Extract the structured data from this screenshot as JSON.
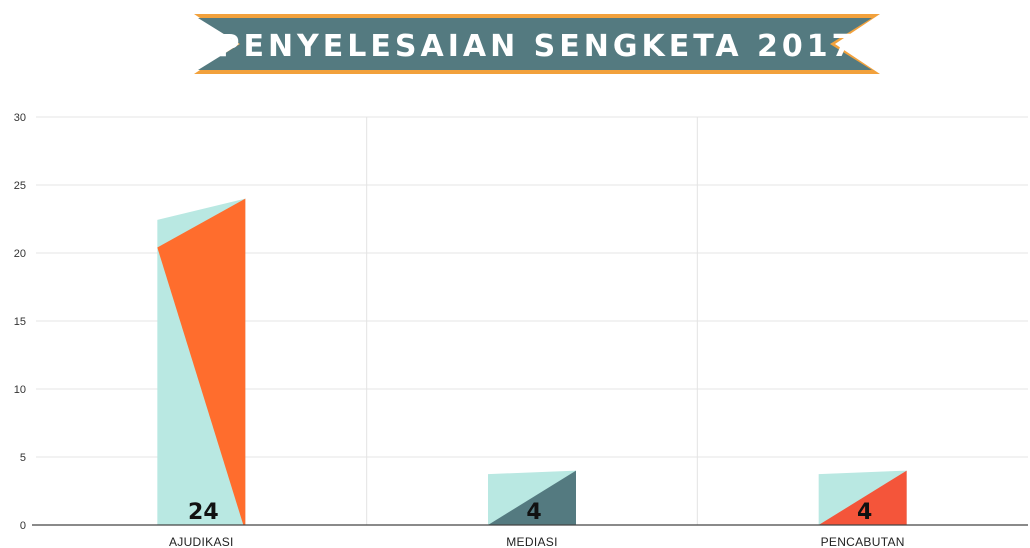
{
  "chart_data": {
    "type": "bar",
    "title": "PENYELESAIAN SENGKETA 2017",
    "categories": [
      "AJUDIKASI",
      "MEDIASI",
      "PENCABUTAN"
    ],
    "values": [
      24,
      4,
      4
    ],
    "data_labels": [
      "24",
      "4",
      "4"
    ],
    "ylim": [
      0,
      30
    ],
    "yticks": [
      0,
      5,
      10,
      15,
      20,
      25,
      30
    ],
    "ytick_labels": [
      "0",
      "5",
      "10",
      "15",
      "20",
      "25",
      "30"
    ],
    "grid": true,
    "legend": "none",
    "colors": {
      "light": "#b9e8e2",
      "bars": [
        "#ff6d2d",
        "#547a80",
        "#f4553a"
      ],
      "banner": "#547a80",
      "banner_trim": "#f2a13c",
      "grid": "#e4e4e4",
      "axis": "#444444"
    }
  }
}
